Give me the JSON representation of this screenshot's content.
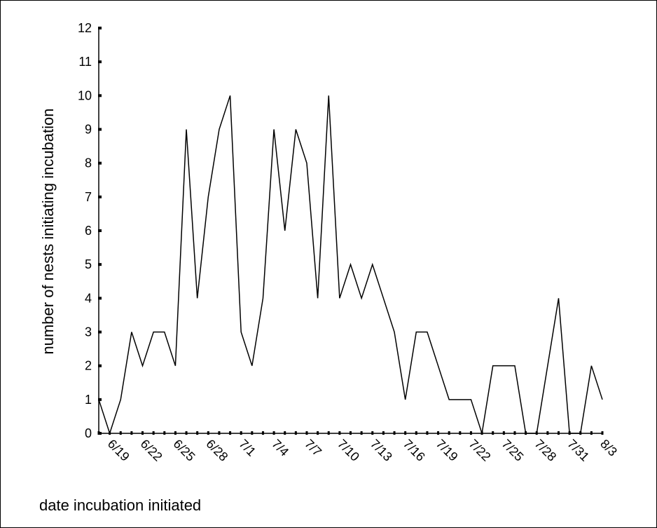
{
  "chart_data": {
    "type": "line",
    "title": "",
    "xlabel": "date incubation initiated",
    "ylabel": "number of nests initiating incubation",
    "ylim": [
      0,
      12
    ],
    "y_ticks": [
      "0",
      "1",
      "2",
      "3",
      "4",
      "5",
      "6",
      "7",
      "8",
      "9",
      "10",
      "11",
      "12"
    ],
    "x_tick_labels": [
      "6/19",
      "6/22",
      "6/25",
      "6/28",
      "7/1",
      "7/4",
      "7/7",
      "7/10",
      "7/13",
      "7/16",
      "7/19",
      "7/22",
      "7/25",
      "7/28",
      "7/31",
      "8/3"
    ],
    "x": [
      "6/18",
      "6/19",
      "6/20",
      "6/21",
      "6/22",
      "6/23",
      "6/24",
      "6/25",
      "6/26",
      "6/27",
      "6/28",
      "6/29",
      "6/30",
      "7/1",
      "7/2",
      "7/3",
      "7/4",
      "7/5",
      "7/6",
      "7/7",
      "7/8",
      "7/9",
      "7/10",
      "7/11",
      "7/12",
      "7/13",
      "7/14",
      "7/15",
      "7/16",
      "7/17",
      "7/18",
      "7/19",
      "7/20",
      "7/21",
      "7/22",
      "7/23",
      "7/24",
      "7/25",
      "7/26",
      "7/27",
      "7/28",
      "7/29",
      "7/30",
      "7/31",
      "8/1",
      "8/2",
      "8/3"
    ],
    "values": [
      1,
      0,
      1,
      3,
      2,
      3,
      3,
      2,
      9,
      4,
      7,
      9,
      10,
      3,
      2,
      4,
      9,
      6,
      9,
      8,
      4,
      10,
      4,
      5,
      4,
      5,
      4,
      3,
      1,
      3,
      3,
      2,
      1,
      1,
      1,
      0,
      2,
      2,
      2,
      0,
      0,
      2,
      4,
      0,
      0,
      2,
      1
    ],
    "grid": false,
    "line_color": "#000000"
  }
}
